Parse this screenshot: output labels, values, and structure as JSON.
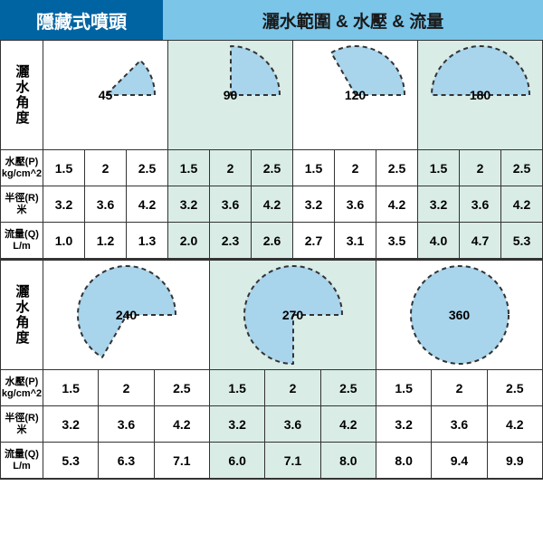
{
  "header": {
    "left": "隱藏式噴頭",
    "right": "灑水範圍 & 水壓 & 流量"
  },
  "row_labels": {
    "angle": "灑水角度",
    "pressure": [
      "水壓(P)",
      "kg/cm^2"
    ],
    "radius": [
      "半徑(R)",
      "米"
    ],
    "flow": [
      "流量(Q)",
      "L/m"
    ]
  },
  "colors": {
    "header_left_bg": "#0064a3",
    "header_right_bg": "#7bc5e9",
    "wedge_fill": "#a8d4ec",
    "wedge_stroke": "#333333",
    "alt_bg": "#d9ece6",
    "border": "#333333"
  },
  "sections": [
    {
      "angle_height": 138,
      "columns_per_angle": 3,
      "angles": [
        {
          "deg": 45,
          "label": "45"
        },
        {
          "deg": 90,
          "label": "90"
        },
        {
          "deg": 120,
          "label": "120"
        },
        {
          "deg": 180,
          "label": "180"
        }
      ],
      "pressure": [
        "1.5",
        "2",
        "2.5",
        "1.5",
        "2",
        "2.5",
        "1.5",
        "2",
        "2.5",
        "1.5",
        "2",
        "2.5"
      ],
      "radius": [
        "3.2",
        "3.6",
        "4.2",
        "3.2",
        "3.6",
        "4.2",
        "3.2",
        "3.6",
        "4.2",
        "3.2",
        "3.6",
        "4.2"
      ],
      "flow": [
        "1.0",
        "1.2",
        "1.3",
        "2.0",
        "2.3",
        "2.6",
        "2.7",
        "3.1",
        "3.5",
        "4.0",
        "4.7",
        "5.3"
      ]
    },
    {
      "angle_height": 160,
      "columns_per_angle": 3,
      "angles": [
        {
          "deg": 240,
          "label": "240"
        },
        {
          "deg": 270,
          "label": "270"
        },
        {
          "deg": 360,
          "label": "360"
        }
      ],
      "pressure": [
        "1.5",
        "2",
        "2.5",
        "1.5",
        "2",
        "2.5",
        "1.5",
        "2",
        "2.5"
      ],
      "radius": [
        "3.2",
        "3.6",
        "4.2",
        "3.2",
        "3.6",
        "4.2",
        "3.2",
        "3.6",
        "4.2"
      ],
      "flow": [
        "5.3",
        "6.3",
        "7.1",
        "6.0",
        "7.1",
        "8.0",
        "8.0",
        "9.4",
        "9.9"
      ]
    }
  ]
}
